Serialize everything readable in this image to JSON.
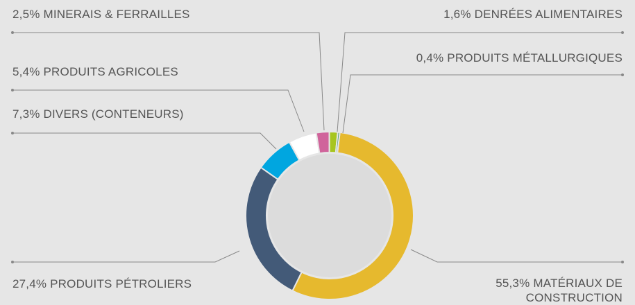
{
  "chart_data": {
    "type": "donut",
    "categories": [
      "MATÉRIAUX DE CONSTRUCTION",
      "PRODUITS PÉTROLIERS",
      "DIVERS (CONTENEURS)",
      "PRODUITS AGRICOLES",
      "MINERAIS & FERRAILLES",
      "DENRÉES ALIMENTAIRES",
      "PRODUITS MÉTALLURGIQUES"
    ],
    "values": [
      55.3,
      27.4,
      7.3,
      5.4,
      2.5,
      1.6,
      0.4
    ],
    "value_labels": [
      "55,3%",
      "27,4%",
      "7,3%",
      "5,4%",
      "2,5%",
      "1,6%",
      "0,4%"
    ],
    "colors": [
      "#e6b92e",
      "#435a78",
      "#00a6e0",
      "#ffffff",
      "#d0649b",
      "#a7c51f",
      "#4a9a6e"
    ]
  }
}
